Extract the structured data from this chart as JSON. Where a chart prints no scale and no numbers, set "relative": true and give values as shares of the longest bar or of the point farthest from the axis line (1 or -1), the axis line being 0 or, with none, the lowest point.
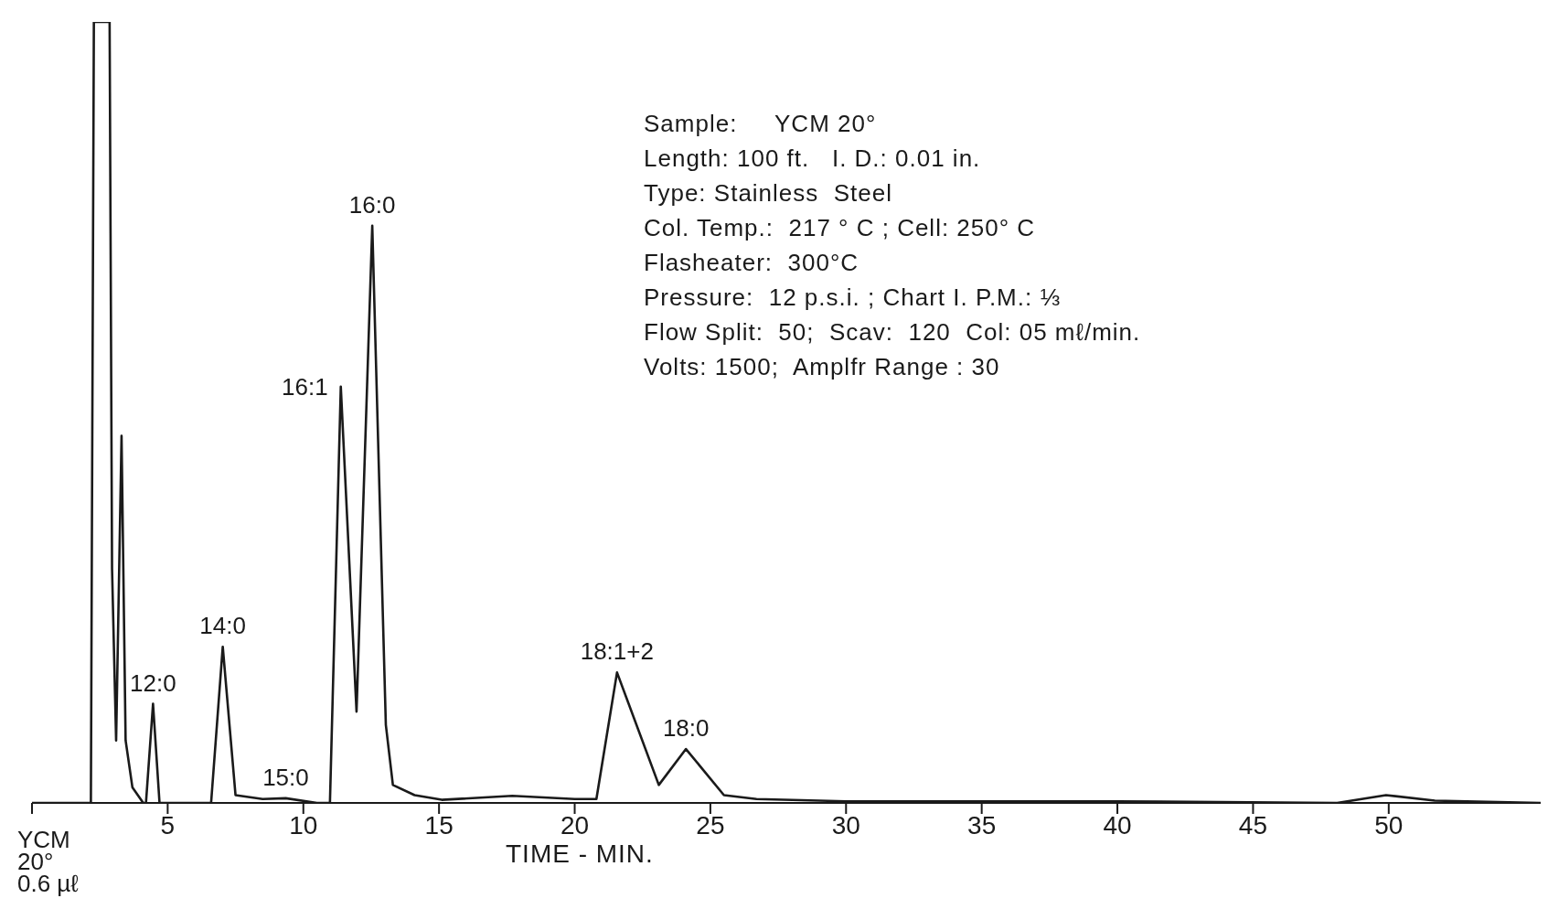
{
  "chart_data": {
    "type": "line",
    "relative": true,
    "xlabel": "TIME - MIN.",
    "xlim": [
      0,
      55.6
    ],
    "xticks": [
      {
        "value": 0,
        "label": null
      },
      5,
      10,
      15,
      20,
      25,
      30,
      35,
      40,
      45,
      50
    ],
    "series": [
      {
        "color": "#1a1a1a",
        "x": [
          0,
          2.17,
          2.28,
          2.86,
          2.95,
          3.1,
          3.3,
          3.45,
          3.7,
          4.1,
          4.2,
          4.46,
          4.7,
          6.0,
          6.6,
          7.03,
          7.5,
          8.5,
          9.35,
          10.5,
          10.98,
          11.38,
          11.96,
          12.54,
          13.04,
          13.3,
          14.1,
          15.1,
          17.7,
          20.0,
          20.8,
          21.56,
          23.1,
          24.1,
          25.5,
          26.7,
          30,
          40,
          48.1,
          49.9,
          51.7,
          55.6
        ],
        "values": [
          0,
          0,
          1,
          1,
          0.3,
          0.08,
          0.47,
          0.08,
          0.02,
          0,
          0,
          0.127,
          0,
          0,
          0,
          0.2,
          0.01,
          0.005,
          0.006,
          0,
          0,
          0.533,
          0.117,
          0.739,
          0.1,
          0.023,
          0.01,
          0.004,
          0.009,
          0.005,
          0.005,
          0.167,
          0.023,
          0.069,
          0.01,
          0.005,
          0.002,
          0.002,
          0,
          0.01,
          0.003,
          0
        ]
      }
    ],
    "marker": "none",
    "line_style": "solid",
    "grid": false,
    "legend": false,
    "annotations": [
      {
        "text": "YCM\n20°\n0.6 µℓ",
        "x": 0,
        "y": 0
      },
      {
        "text": "12:0",
        "x": 4.46,
        "y": 0.127
      },
      {
        "text": "14:0",
        "x": 7.03,
        "y": 0.2
      },
      {
        "text": "15:0",
        "x": 9.35,
        "y": 0.006
      },
      {
        "text": "16:1",
        "x": 11.38,
        "y": 0.533
      },
      {
        "text": "16:0",
        "x": 12.54,
        "y": 0.739
      },
      {
        "text": "18:1+2",
        "x": 21.56,
        "y": 0.167
      },
      {
        "text": "18:0",
        "x": 24.1,
        "y": 0.069
      },
      "Sample:     YCM 20°",
      "Length: 100 ft.   I. D.: 0.01 in.",
      "Type: Stainless  Steel",
      "Col. Temp.:  217 ° C ; Cell: 250° C",
      "Flasheater:  300°C",
      "Pressure:  12 p.s.i. ; Chart I. P.M.: ⅓",
      "Flow Split:  50;  Scav:  120  Col: 05 mℓ/min.",
      "Volts: 1500;  Amplfr Range : 30"
    ]
  }
}
